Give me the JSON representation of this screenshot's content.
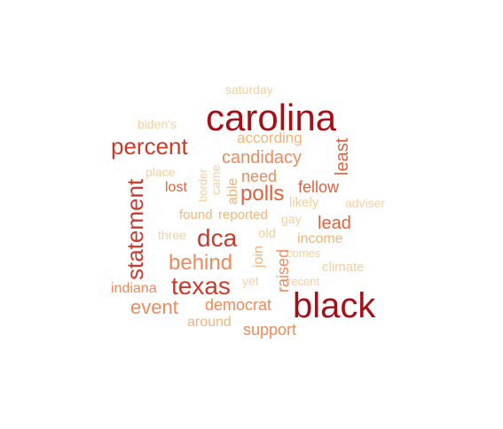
{
  "palette": {
    "darkred": "#a50f15",
    "red": "#cb3a2a",
    "orange": "#e1603e",
    "salmon": "#ee8a5b",
    "peach": "#f4b37a",
    "light": "#f7cf9b"
  },
  "words": [
    {
      "text": "carolina",
      "color": "darkred"
    },
    {
      "text": "black",
      "color": "darkred"
    },
    {
      "text": "percent",
      "color": "red"
    },
    {
      "text": "dca",
      "color": "red"
    },
    {
      "text": "texas",
      "color": "red"
    },
    {
      "text": "statement",
      "color": "red"
    },
    {
      "text": "polls",
      "color": "orange"
    },
    {
      "text": "behind",
      "color": "salmon"
    },
    {
      "text": "candidacy",
      "color": "salmon"
    },
    {
      "text": "lead",
      "color": "orange"
    },
    {
      "text": "fellow",
      "color": "orange"
    },
    {
      "text": "least",
      "color": "orange"
    },
    {
      "text": "according",
      "color": "peach"
    },
    {
      "text": "need",
      "color": "salmon"
    },
    {
      "text": "lost",
      "color": "orange"
    },
    {
      "text": "event",
      "color": "salmon"
    },
    {
      "text": "democrat",
      "color": "salmon"
    },
    {
      "text": "support",
      "color": "salmon"
    },
    {
      "text": "indiana",
      "color": "salmon"
    },
    {
      "text": "raised",
      "color": "salmon"
    },
    {
      "text": "join",
      "color": "peach"
    },
    {
      "text": "income",
      "color": "peach"
    },
    {
      "text": "found",
      "color": "peach"
    },
    {
      "text": "reported",
      "color": "peach"
    },
    {
      "text": "likely",
      "color": "light"
    },
    {
      "text": "able",
      "color": "peach"
    },
    {
      "text": "came",
      "color": "light"
    },
    {
      "text": "border",
      "color": "light"
    },
    {
      "text": "around",
      "color": "peach"
    },
    {
      "text": "climate",
      "color": "light"
    },
    {
      "text": "adviser",
      "color": "light"
    },
    {
      "text": "gay",
      "color": "light"
    },
    {
      "text": "old",
      "color": "light"
    },
    {
      "text": "comes",
      "color": "light"
    },
    {
      "text": "recent",
      "color": "light"
    },
    {
      "text": "yet",
      "color": "light"
    },
    {
      "text": "three",
      "color": "light"
    },
    {
      "text": "place",
      "color": "light"
    },
    {
      "text": "biden's",
      "color": "light"
    },
    {
      "text": "saturday",
      "color": "light"
    }
  ]
}
